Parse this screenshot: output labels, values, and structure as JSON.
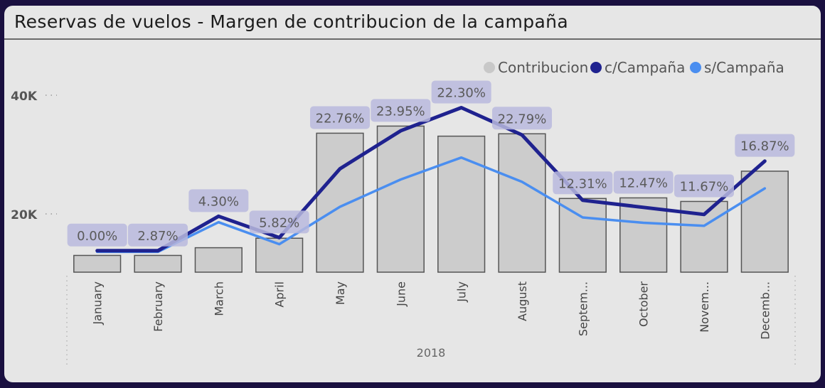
{
  "title": "Reservas de vuelos - Margen de contribucion de la campaña",
  "colors": {
    "background": "#e6e6e6",
    "bar_fill": "#cccccc",
    "bar_stroke": "#555555",
    "c_campana": "#1f228f",
    "s_campana": "#4a8ef0",
    "label_box": "#b8b9dd",
    "legend_contribucion": "#c8c8c8"
  },
  "chart_data": {
    "type": "bar",
    "categories": [
      "January",
      "February",
      "March",
      "April",
      "May",
      "June",
      "July",
      "August",
      "Septem...",
      "October",
      "Novem...",
      "Decemb..."
    ],
    "x_group_label": "2018",
    "y_ticks": [
      "20K",
      "40K"
    ],
    "ylim": [
      10000,
      46000
    ],
    "legend_position": "top-right",
    "legend": [
      {
        "label": "Contribucion",
        "color": "#c8c8c8"
      },
      {
        "label": "c/Campaña",
        "color": "#1f228f"
      },
      {
        "label": "s/Campaña",
        "color": "#4a8ef0"
      }
    ],
    "series": [
      {
        "name": "Contribucion",
        "kind": "bar",
        "values": [
          13000,
          13000,
          14300,
          15900,
          33600,
          34800,
          33100,
          33500,
          22600,
          22700,
          22100,
          27200
        ]
      },
      {
        "name": "c/Campaña",
        "kind": "line",
        "values": [
          13800,
          13800,
          19600,
          16000,
          27600,
          34000,
          37900,
          33300,
          22300,
          21100,
          19900,
          28900
        ]
      },
      {
        "name": "s/Campaña",
        "kind": "line",
        "values": [
          13600,
          13600,
          18600,
          14900,
          21200,
          25800,
          29500,
          25400,
          19400,
          18500,
          18000,
          24300
        ]
      }
    ],
    "data_labels": [
      "0.00%",
      "2.87%",
      "4.30%",
      "5.82%",
      "22.76%",
      "23.95%",
      "22.30%",
      "22.79%",
      "12.31%",
      "12.47%",
      "11.67%",
      "16.87%"
    ]
  }
}
